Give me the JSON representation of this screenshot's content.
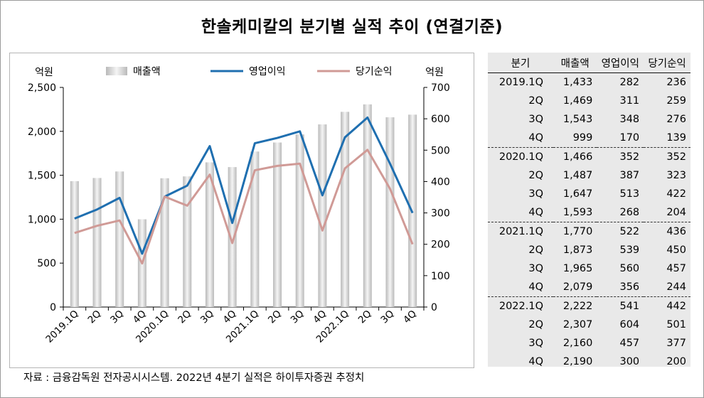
{
  "title": "한솔케미칼의 분기별 실적 추이 (연결기준)",
  "source": "자료 : 금융감독원 전자공시시스템. 2022년 4분기 실적은 하이투자증권 추정치",
  "chart_data": {
    "type": "bar",
    "left_unit": "억원",
    "right_unit": "억원",
    "categories": [
      "2019.1Q",
      "2Q",
      "3Q",
      "4Q",
      "2020.1Q",
      "2Q",
      "3Q",
      "4Q",
      "2021.1Q",
      "2Q",
      "3Q",
      "4Q",
      "2022.1Q",
      "2Q",
      "3Q",
      "4Q"
    ],
    "series": [
      {
        "name": "매출액",
        "type": "bar",
        "axis": "left",
        "color": "#d6d6d6",
        "values": [
          1433,
          1469,
          1543,
          999,
          1466,
          1487,
          1647,
          1593,
          1770,
          1873,
          1965,
          2079,
          2222,
          2307,
          2160,
          2190
        ]
      },
      {
        "name": "영업이익",
        "type": "line",
        "axis": "right",
        "color": "#1f6fb0",
        "values": [
          282,
          311,
          348,
          170,
          352,
          387,
          513,
          268,
          522,
          539,
          560,
          356,
          541,
          604,
          457,
          300
        ]
      },
      {
        "name": "당기순익",
        "type": "line",
        "axis": "right",
        "color": "#d09a96",
        "values": [
          236,
          259,
          276,
          139,
          352,
          323,
          422,
          204,
          436,
          450,
          457,
          244,
          442,
          501,
          377,
          200
        ]
      }
    ],
    "y_left": {
      "min": 0,
      "max": 2500,
      "ticks": [
        "0",
        "500",
        "1,000",
        "1,500",
        "2,000",
        "2,500"
      ]
    },
    "y_right": {
      "min": 0,
      "max": 700,
      "ticks": [
        "0",
        "100",
        "200",
        "300",
        "400",
        "500",
        "600",
        "700"
      ]
    },
    "grid": false,
    "legend_position": "top"
  },
  "table": {
    "headers": [
      "분기",
      "매출액",
      "영업이익",
      "당기순익"
    ],
    "groups": [
      {
        "rows": [
          [
            "2019.1Q",
            "1,433",
            "282",
            "236"
          ],
          [
            "2Q",
            "1,469",
            "311",
            "259"
          ],
          [
            "3Q",
            "1,543",
            "348",
            "276"
          ],
          [
            "4Q",
            "999",
            "170",
            "139"
          ]
        ]
      },
      {
        "rows": [
          [
            "2020.1Q",
            "1,466",
            "352",
            "352"
          ],
          [
            "2Q",
            "1,487",
            "387",
            "323"
          ],
          [
            "3Q",
            "1,647",
            "513",
            "422"
          ],
          [
            "4Q",
            "1,593",
            "268",
            "204"
          ]
        ]
      },
      {
        "rows": [
          [
            "2021.1Q",
            "1,770",
            "522",
            "436"
          ],
          [
            "2Q",
            "1,873",
            "539",
            "450"
          ],
          [
            "3Q",
            "1,965",
            "560",
            "457"
          ],
          [
            "4Q",
            "2,079",
            "356",
            "244"
          ]
        ]
      },
      {
        "rows": [
          [
            "2022.1Q",
            "2,222",
            "541",
            "442"
          ],
          [
            "2Q",
            "2,307",
            "604",
            "501"
          ],
          [
            "3Q",
            "2,160",
            "457",
            "377"
          ],
          [
            "4Q",
            "2,190",
            "300",
            "200"
          ]
        ]
      }
    ]
  }
}
